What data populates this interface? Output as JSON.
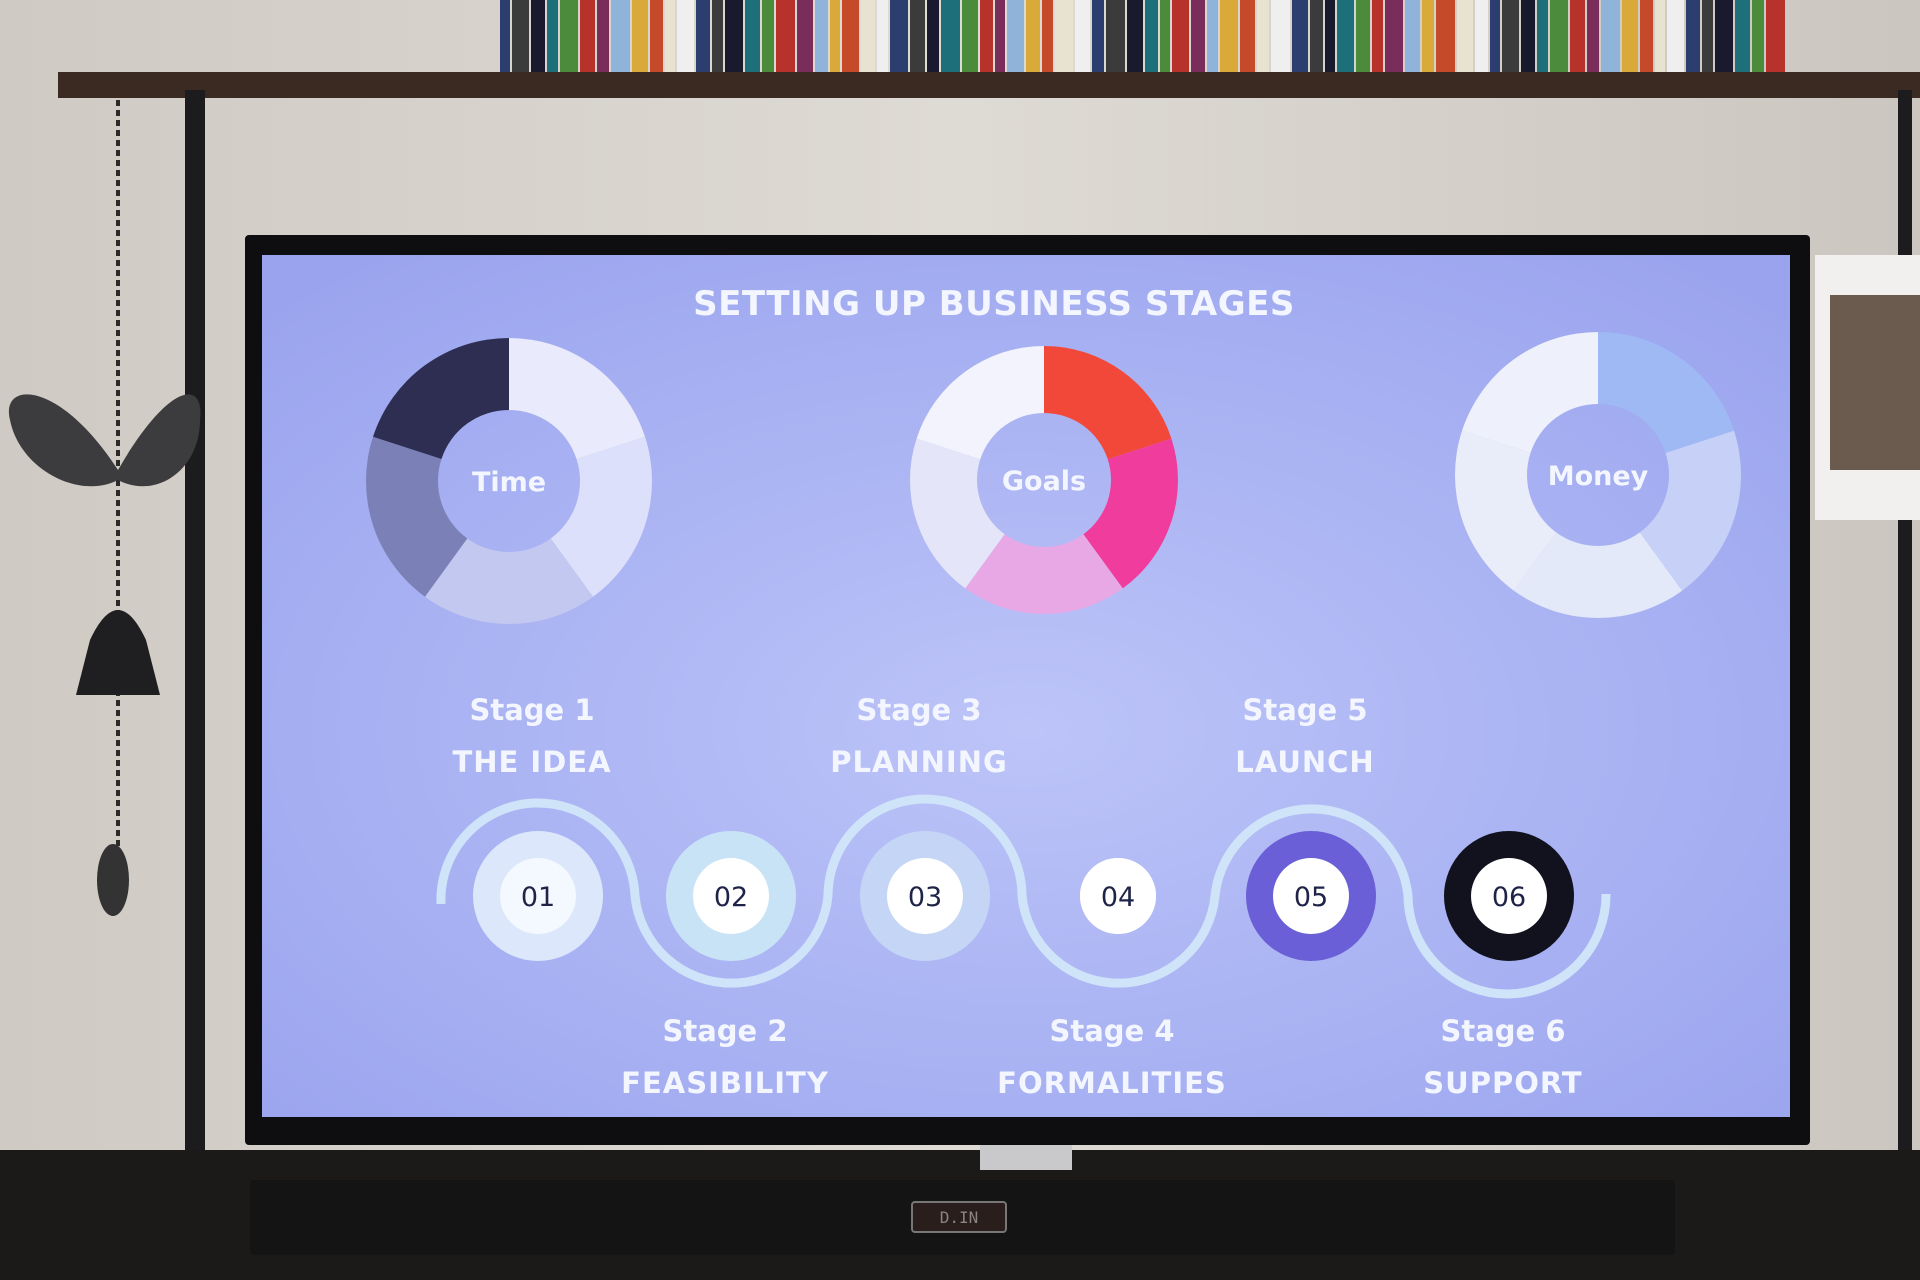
{
  "screen": {
    "title": "SETTING UP BUSINESS STAGES",
    "donuts": [
      {
        "label": "Time",
        "segments": [
          {
            "share": 20,
            "color": "#e9ebfc"
          },
          {
            "share": 20,
            "color": "#dde0fa"
          },
          {
            "share": 20,
            "color": "#c3c8f0"
          },
          {
            "share": 20,
            "color": "#7b80b6"
          },
          {
            "share": 20,
            "color": "#2d2e52"
          }
        ]
      },
      {
        "label": "Goals",
        "segments": [
          {
            "share": 20,
            "color": "#f2483a"
          },
          {
            "share": 20,
            "color": "#f03c9c"
          },
          {
            "share": 20,
            "color": "#e8a8e6"
          },
          {
            "share": 20,
            "color": "#e4e5f8"
          },
          {
            "share": 20,
            "color": "#f2f3fc"
          }
        ]
      },
      {
        "label": "Money",
        "segments": [
          {
            "share": 20,
            "color": "#9fb9f4"
          },
          {
            "share": 20,
            "color": "#c7d1f8"
          },
          {
            "share": 20,
            "color": "#e3e9f8"
          },
          {
            "share": 20,
            "color": "#e9edfa"
          },
          {
            "share": 20,
            "color": "#eef1fb"
          }
        ]
      }
    ],
    "stages": [
      {
        "stage": "Stage 1",
        "name": "THE IDEA",
        "number": "01",
        "ring": "#dce7fb",
        "core": "#f4f8ff"
      },
      {
        "stage": "Stage 2",
        "name": "FEASIBILITY",
        "number": "02",
        "ring": "#c8e3f6",
        "core": "#ffffff"
      },
      {
        "stage": "Stage 3",
        "name": "PLANNING",
        "number": "03",
        "ring": "#c4d5f5",
        "core": "#ffffff"
      },
      {
        "stage": "Stage 4",
        "name": "FORMALITIES",
        "number": "04",
        "ring": "#ffffff",
        "core": "#ffffff"
      },
      {
        "stage": "Stage 5",
        "name": "LAUNCH",
        "number": "05",
        "ring": "#6a5fd6",
        "core": "#ffffff"
      },
      {
        "stage": "Stage 6",
        "name": "SUPPORT",
        "number": "06",
        "ring": "#12121e",
        "core": "#ffffff"
      }
    ],
    "wave_color": "#cfe3f9"
  },
  "soundbar": {
    "display": "D.IN"
  }
}
